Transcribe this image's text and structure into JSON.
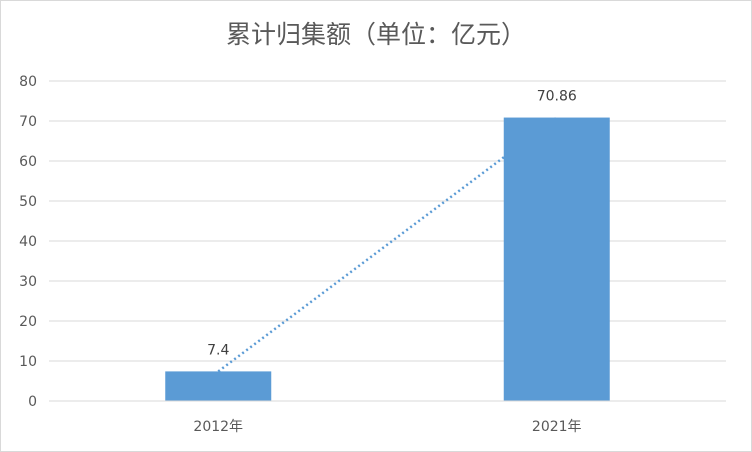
{
  "chart_data": {
    "type": "bar",
    "title": "累计归集额（单位：亿元）",
    "categories": [
      "2012年",
      "2021年"
    ],
    "values": [
      7.4,
      70.86
    ],
    "data_labels": [
      "7.4",
      "70.86"
    ],
    "ylim": [
      0,
      80
    ],
    "yticks": [
      0,
      10,
      20,
      30,
      40,
      50,
      60,
      70,
      80
    ],
    "grid": true,
    "trendline": "linear, dotted",
    "bar_color": "#5b9bd5",
    "xlabel": "",
    "ylabel": ""
  }
}
